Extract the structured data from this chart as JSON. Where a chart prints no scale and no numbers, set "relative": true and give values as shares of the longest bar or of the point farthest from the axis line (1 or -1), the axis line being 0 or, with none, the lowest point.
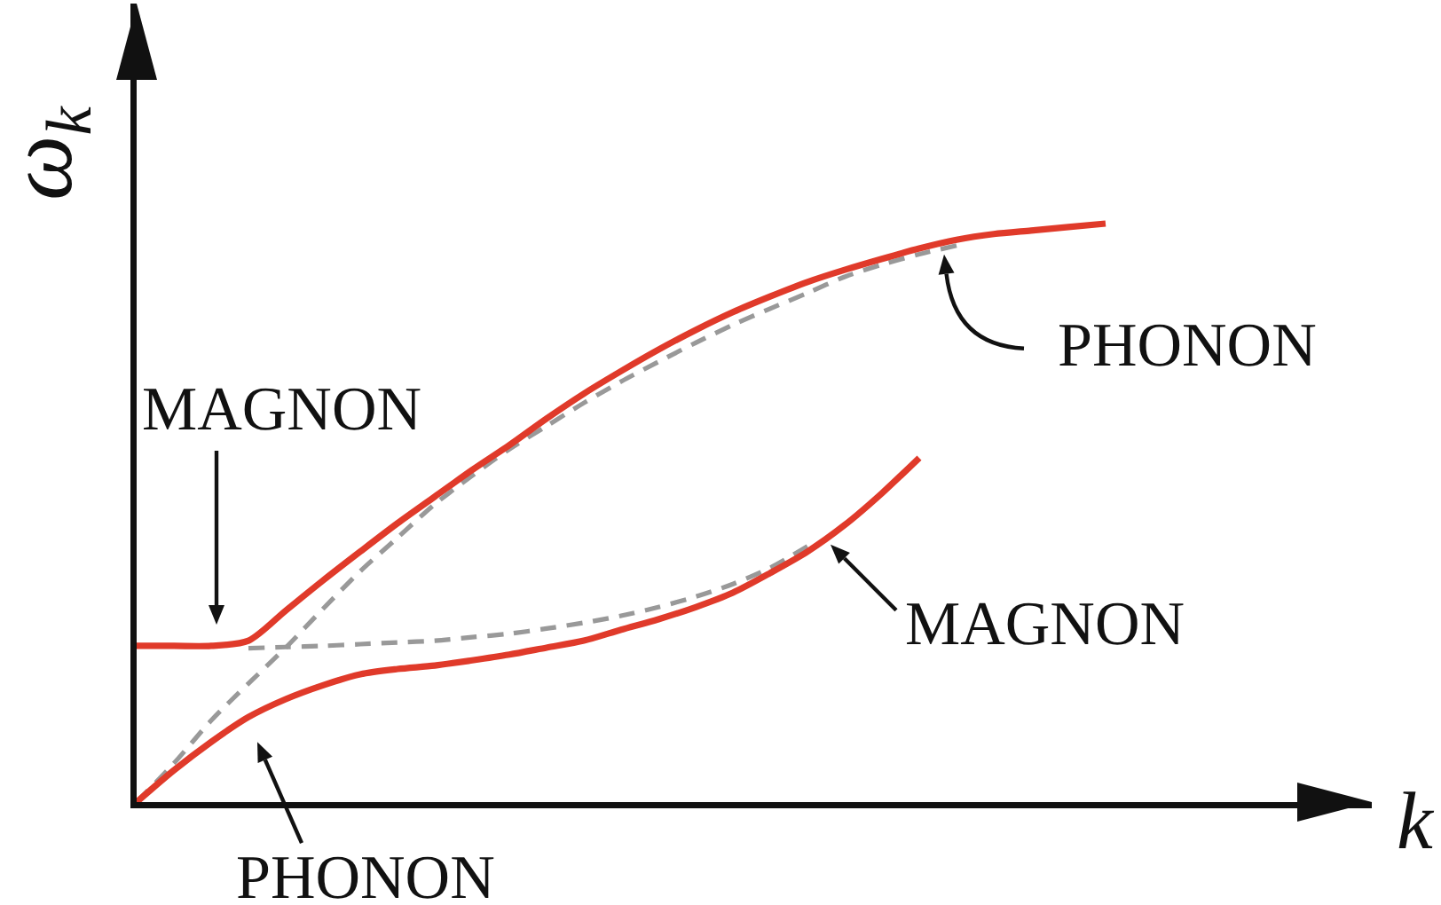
{
  "chart_data": {
    "type": "line",
    "relative": true,
    "xlabel": "k",
    "ylabel": "ω$_{k}$",
    "tick_labels": false,
    "categories": [
      null,
      null,
      null,
      null,
      null,
      null,
      null,
      null,
      null,
      null,
      null,
      null,
      null,
      null,
      null,
      null,
      null,
      null,
      null,
      null,
      null,
      null,
      null,
      null,
      null,
      null,
      null
    ],
    "series": [
      {
        "color": "#999999",
        "line_style": "dashed",
        "values": [
          0,
          0.067,
          0.141,
          0.205,
          0.267,
          0.334,
          0.399,
          0.457,
          0.515,
          0.564,
          0.61,
          0.65,
          0.69,
          0.727,
          0.761,
          0.794,
          0.825,
          0.853,
          0.88,
          0.908,
          0.929,
          0.947,
          0.962,
          null,
          null,
          null,
          null
        ]
      },
      {
        "color": "#999999",
        "line_style": "dashed",
        "values": [
          null,
          null,
          null,
          0.266,
          0.268,
          0.27,
          0.273,
          0.276,
          0.279,
          0.285,
          0.291,
          0.3,
          0.31,
          0.322,
          0.337,
          0.355,
          0.377,
          0.405,
          0.442,
          null,
          null,
          null,
          null,
          null,
          null,
          null,
          null
        ]
      },
      {
        "color": "#e03a2a",
        "line_style": "solid",
        "values": [
          0.27,
          0.27,
          0.27,
          0.279,
          0.331,
          0.383,
          0.433,
          0.482,
          0.528,
          0.574,
          0.617,
          0.663,
          0.706,
          0.745,
          0.782,
          0.816,
          0.847,
          0.874,
          0.899,
          0.92,
          0.939,
          0.957,
          0.972,
          0.982,
          0.988,
          0.994,
          1
        ]
      },
      {
        "color": "#e03a2a",
        "line_style": "solid",
        "values": [
          0,
          0.055,
          0.104,
          0.147,
          0.178,
          0.202,
          0.221,
          0.23,
          0.236,
          0.245,
          0.255,
          0.267,
          0.279,
          0.298,
          0.316,
          0.337,
          0.362,
          0.396,
          0.433,
          0.479,
          0.534,
          0.595,
          null,
          null,
          null,
          null,
          null
        ]
      }
    ],
    "annotations": [
      "MAGNON",
      "PHONON",
      "PHONON",
      "MAGNON"
    ]
  }
}
